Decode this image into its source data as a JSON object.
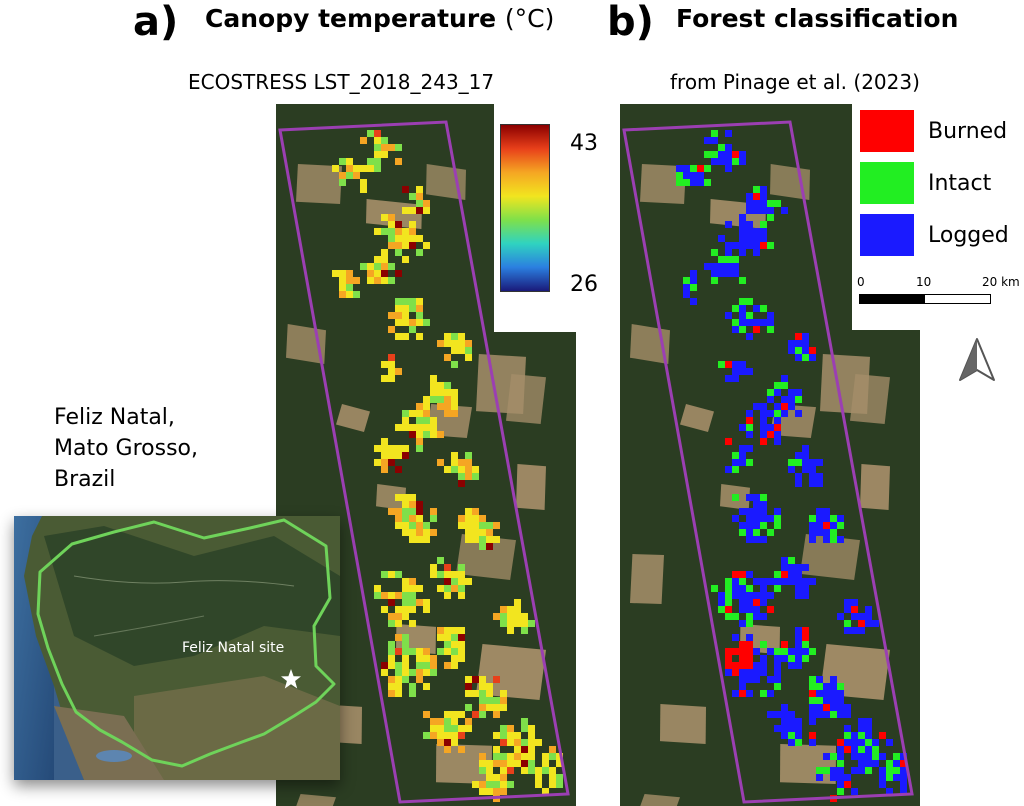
{
  "panel_a": {
    "letter": "a)",
    "title": "Canopy temperature",
    "title_unit": "(°C)",
    "subtitle": "ECOSTRESS LST_2018_243_17",
    "colorbar": {
      "max": "43",
      "min": "26",
      "colors": [
        "#8b0000",
        "#e8401a",
        "#f5a623",
        "#f2e51f",
        "#7fe04a",
        "#2fd3c0",
        "#2b7fe0",
        "#1a1a7a"
      ]
    }
  },
  "panel_b": {
    "letter": "b)",
    "title": "Forest classification",
    "subtitle": "from Pinage et al. (2023)",
    "legend": [
      {
        "label": "Burned",
        "color": "#ff0000"
      },
      {
        "label": "Intact",
        "color": "#22ee22"
      },
      {
        "label": "Logged",
        "color": "#1a1aff"
      }
    ],
    "scalebar": {
      "ticks": [
        "0",
        "10",
        "20 km"
      ]
    },
    "north_arrow_icon": "north-arrow-icon"
  },
  "site": {
    "lines": [
      "Feliz Natal,",
      "Mato Grosso,",
      "Brazil"
    ],
    "inset_label": "Feliz Natal site",
    "star_icon": "star-icon"
  },
  "colors": {
    "forest": "#2b3d22",
    "cleared": "#a58e69",
    "footprint": "#9b3fb2",
    "boundary": "#6fd35a"
  }
}
